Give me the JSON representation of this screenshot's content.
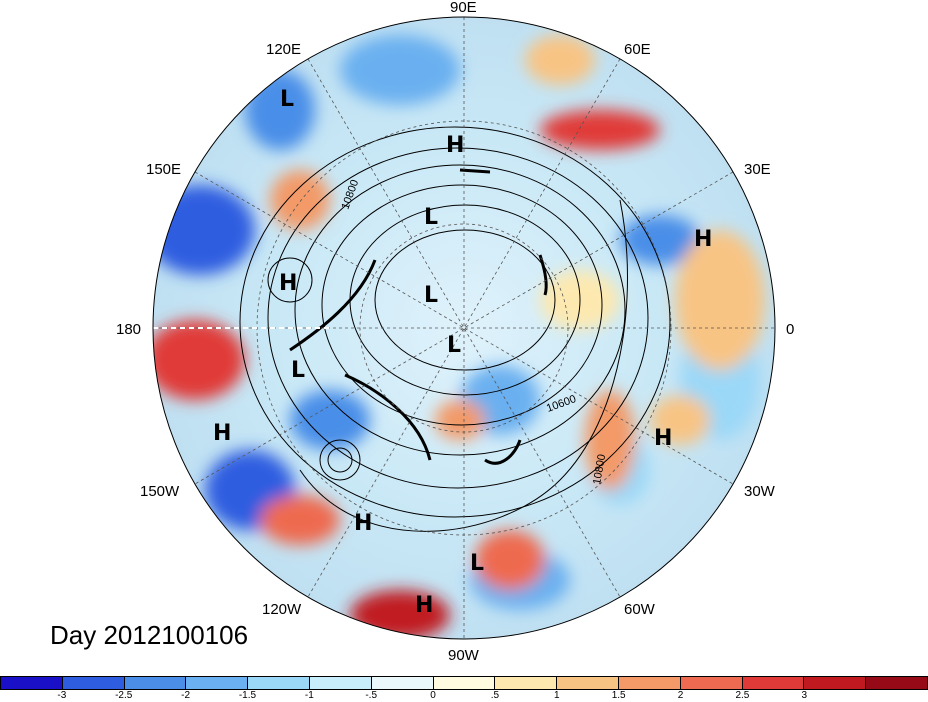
{
  "title": "Day 2012100106",
  "lon_labels": [
    {
      "text": "90E",
      "angle": -90
    },
    {
      "text": "60E",
      "angle": -60
    },
    {
      "text": "30E",
      "angle": -30
    },
    {
      "text": "0",
      "angle": 0
    },
    {
      "text": "30W",
      "angle": 30
    },
    {
      "text": "60W",
      "angle": 60
    },
    {
      "text": "90W",
      "angle": 90
    },
    {
      "text": "120W",
      "angle": 120
    },
    {
      "text": "150W",
      "angle": 150
    },
    {
      "text": "180",
      "angle": 180
    },
    {
      "text": "150E",
      "angle": 210
    },
    {
      "text": "120E",
      "angle": 240
    }
  ],
  "pressure_systems": [
    {
      "type": "L",
      "pos": "upper-left"
    },
    {
      "type": "H",
      "pos": "north-siberia"
    },
    {
      "type": "L",
      "pos": "kara-sea"
    },
    {
      "type": "L",
      "pos": "pole-upper"
    },
    {
      "type": "L",
      "pos": "pole"
    },
    {
      "type": "H",
      "pos": "east-asia"
    },
    {
      "type": "L",
      "pos": "bering"
    },
    {
      "type": "H",
      "pos": "europe"
    },
    {
      "type": "H",
      "pos": "pacific"
    },
    {
      "type": "H",
      "pos": "east-pacific"
    },
    {
      "type": "H",
      "pos": "atlantic"
    },
    {
      "type": "L",
      "pos": "caribbean"
    },
    {
      "type": "H",
      "pos": "south-pacific"
    }
  ],
  "contour_labels": [
    "10800",
    "10600",
    "10800"
  ],
  "colorbar": {
    "colors": [
      "#1a10c8",
      "#2f5de0",
      "#4a8ee8",
      "#6bb0f0",
      "#9bd8f8",
      "#c8eefc",
      "#eaf8fc",
      "#fffbe0",
      "#fde9b0",
      "#f8c484",
      "#f39a68",
      "#ee6a50",
      "#e03a38",
      "#c01a20",
      "#960a18"
    ],
    "ticks": [
      "-3",
      "-2.5",
      "-2",
      "-1.5",
      "-1",
      "-.5",
      "0",
      ".5",
      "1",
      "1.5",
      "2",
      "2.5",
      "3"
    ]
  }
}
